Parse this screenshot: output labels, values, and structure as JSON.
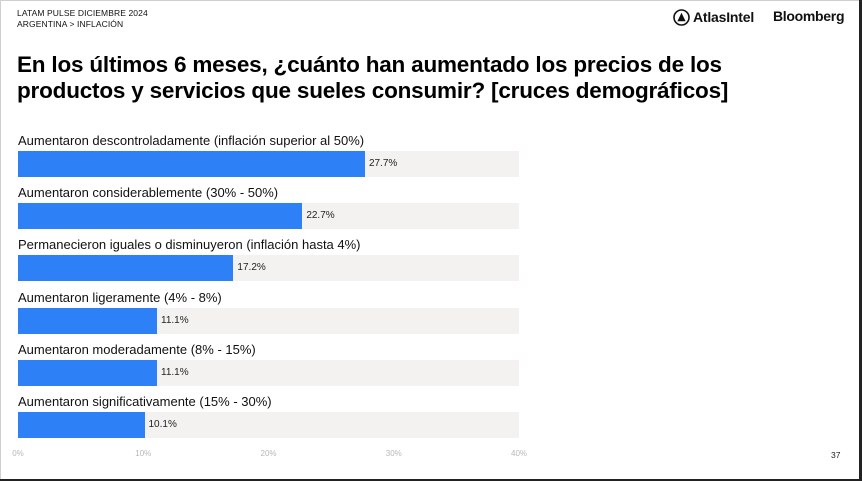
{
  "header": {
    "line1": "LATAM PULSE DICIEMBRE 2024",
    "line2": "ARGENTINA > INFLACIÓN",
    "brand1": "AtlasIntel",
    "brand2": "Bloomberg",
    "brand1_icon": "atlas-logo-icon"
  },
  "title": "En los últimos 6 meses, ¿cuánto han aumentado los precios de los productos y servicios que sueles consumir? [cruces demográficos]",
  "page_number": "37",
  "colors": {
    "bar": "#2e80f6",
    "track": "#f3f2f1"
  },
  "chart_data": {
    "type": "bar",
    "orientation": "horizontal",
    "categories": [
      "Aumentaron descontroladamente (inflación superior al 50%)",
      "Aumentaron considerablemente (30% - 50%)",
      "Permanecieron iguales o disminuyeron (inflación hasta 4%)",
      "Aumentaron ligeramente (4% - 8%)",
      "Aumentaron moderadamente (8% - 15%)",
      "Aumentaron significativamente (15% - 30%)"
    ],
    "values": [
      27.7,
      22.7,
      17.2,
      11.1,
      11.1,
      10.1
    ],
    "value_labels": [
      "27.7%",
      "22.7%",
      "17.2%",
      "11.1%",
      "11.1%",
      "10.1%"
    ],
    "xlim": [
      0,
      40
    ],
    "ticks": [
      "0%",
      "10%",
      "20%",
      "30%",
      "40%"
    ],
    "unit": "%"
  }
}
